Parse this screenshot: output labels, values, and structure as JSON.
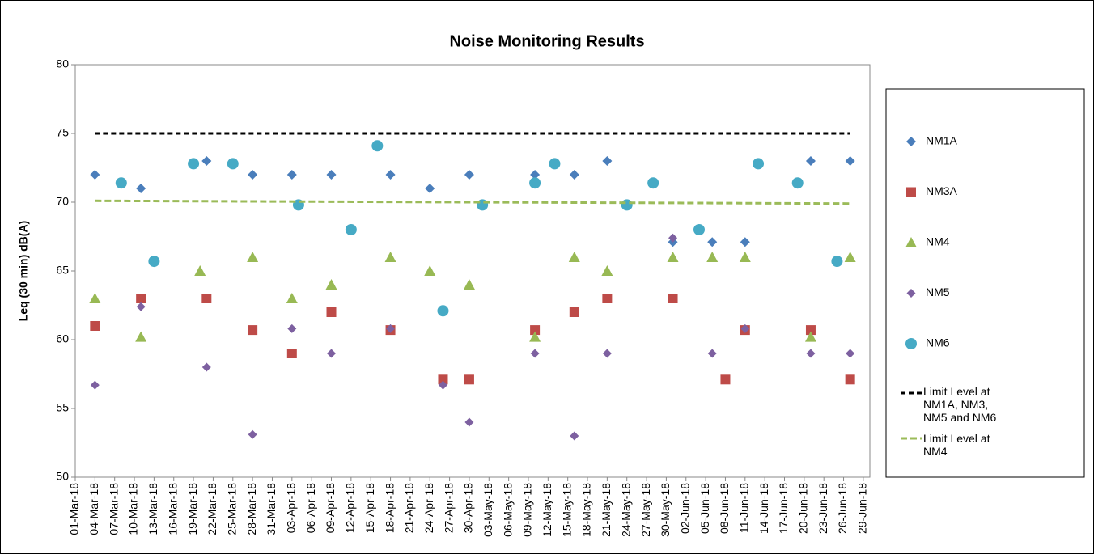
{
  "chart_data": {
    "type": "scatter",
    "title": "Noise Monitoring Results",
    "y_label": "Leq (30 min) dB(A)",
    "ylim": [
      50,
      80
    ],
    "yticks": [
      50,
      55,
      60,
      65,
      70,
      75,
      80
    ],
    "xlim": [
      "01-Mar-18",
      "30-Jun-18"
    ],
    "xticks": [
      "01-Mar-18",
      "04-Mar-18",
      "07-Mar-18",
      "10-Mar-18",
      "13-Mar-18",
      "16-Mar-18",
      "19-Mar-18",
      "22-Mar-18",
      "25-Mar-18",
      "28-Mar-18",
      "31-Mar-18",
      "03-Apr-18",
      "06-Apr-18",
      "09-Apr-18",
      "12-Apr-18",
      "15-Apr-18",
      "18-Apr-18",
      "21-Apr-18",
      "24-Apr-18",
      "27-Apr-18",
      "30-Apr-18",
      "03-May-18",
      "06-May-18",
      "09-May-18",
      "12-May-18",
      "15-May-18",
      "18-May-18",
      "21-May-18",
      "24-May-18",
      "27-May-18",
      "30-May-18",
      "02-Jun-18",
      "05-Jun-18",
      "08-Jun-18",
      "11-Jun-18",
      "14-Jun-18",
      "17-Jun-18",
      "20-Jun-18",
      "23-Jun-18",
      "26-Jun-18",
      "29-Jun-18"
    ],
    "grid": false,
    "legend": "right",
    "series": [
      {
        "name": "NM1A",
        "color": "#4a7ebb",
        "marker": "diamond",
        "x": [
          "04-Mar-18",
          "11-Mar-18",
          "21-Mar-18",
          "28-Mar-18",
          "03-Apr-18",
          "09-Apr-18",
          "18-Apr-18",
          "24-Apr-18",
          "30-Apr-18",
          "10-May-18",
          "16-May-18",
          "21-May-18",
          "31-May-18",
          "06-Jun-18",
          "11-Jun-18",
          "21-Jun-18",
          "27-Jun-18"
        ],
        "values": [
          72,
          71,
          73,
          72,
          72,
          72,
          72,
          71,
          72,
          72,
          72,
          73,
          67.1,
          67.1,
          67.1,
          73,
          73
        ]
      },
      {
        "name": "NM3A",
        "color": "#be4b48",
        "marker": "square",
        "x": [
          "04-Mar-18",
          "11-Mar-18",
          "21-Mar-18",
          "28-Mar-18",
          "03-Apr-18",
          "09-Apr-18",
          "18-Apr-18",
          "26-Apr-18",
          "30-Apr-18",
          "10-May-18",
          "16-May-18",
          "21-May-18",
          "31-May-18",
          "08-Jun-18",
          "11-Jun-18",
          "21-Jun-18",
          "27-Jun-18"
        ],
        "values": [
          61,
          63,
          63,
          60.7,
          59,
          62,
          60.7,
          57.1,
          57.1,
          60.7,
          62,
          63,
          63,
          57.1,
          60.7,
          60.7,
          57.1
        ]
      },
      {
        "name": "NM4",
        "color": "#98b954",
        "marker": "triangle",
        "x": [
          "04-Mar-18",
          "11-Mar-18",
          "20-Mar-18",
          "28-Mar-18",
          "03-Apr-18",
          "09-Apr-18",
          "18-Apr-18",
          "24-Apr-18",
          "30-Apr-18",
          "10-May-18",
          "16-May-18",
          "21-May-18",
          "31-May-18",
          "06-Jun-18",
          "11-Jun-18",
          "21-Jun-18",
          "27-Jun-18"
        ],
        "values": [
          63,
          60.2,
          65,
          66,
          63,
          64,
          66,
          65,
          64,
          60.2,
          66,
          65,
          66,
          66,
          66,
          60.2,
          66
        ]
      },
      {
        "name": "NM5",
        "color": "#7d60a0",
        "marker": "small-diamond",
        "x": [
          "04-Mar-18",
          "11-Mar-18",
          "21-Mar-18",
          "28-Mar-18",
          "03-Apr-18",
          "09-Apr-18",
          "18-Apr-18",
          "26-Apr-18",
          "30-Apr-18",
          "10-May-18",
          "16-May-18",
          "21-May-18",
          "31-May-18",
          "06-Jun-18",
          "11-Jun-18",
          "21-Jun-18",
          "27-Jun-18"
        ],
        "values": [
          56.7,
          62.4,
          58,
          53.1,
          60.8,
          59,
          60.8,
          56.7,
          54,
          59,
          53,
          59,
          67.4,
          59,
          60.8,
          59,
          59
        ]
      },
      {
        "name": "NM6",
        "color": "#46aac5",
        "marker": "circle",
        "x": [
          "08-Mar-18",
          "13-Mar-18",
          "19-Mar-18",
          "25-Mar-18",
          "04-Apr-18",
          "12-Apr-18",
          "16-Apr-18",
          "26-Apr-18",
          "02-May-18",
          "10-May-18",
          "13-May-18",
          "24-May-18",
          "28-May-18",
          "04-Jun-18",
          "13-Jun-18",
          "19-Jun-18",
          "25-Jun-18"
        ],
        "values": [
          71.4,
          65.7,
          72.8,
          72.8,
          69.8,
          68,
          74.1,
          62.1,
          69.8,
          71.4,
          72.8,
          69.8,
          71.4,
          68,
          72.8,
          71.4,
          65.7
        ]
      },
      {
        "name": "Limit Level at NM1A, NM3, NM5 and NM6",
        "color": "#000000",
        "marker": "dashed-line",
        "x": [
          "04-Mar-18",
          "27-Jun-18"
        ],
        "values": [
          75,
          75
        ]
      },
      {
        "name": "Limit Level at NM4",
        "color": "#9bbb59",
        "marker": "dashed-line",
        "x": [
          "04-Mar-18",
          "27-Jun-18"
        ],
        "values": [
          70.1,
          69.9
        ]
      }
    ]
  }
}
